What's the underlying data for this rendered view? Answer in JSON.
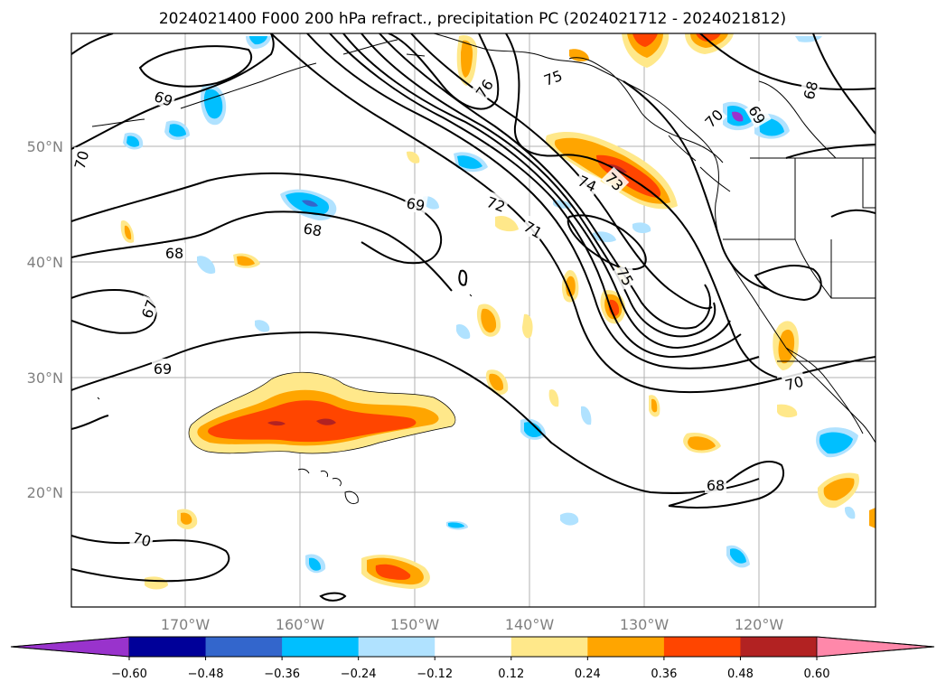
{
  "title": "2024021400 F000 200 hPa refract., precipitation PC (2024021712 - 2024021812)",
  "map": {
    "lon_ticks": [
      "170°W",
      "160°W",
      "150°W",
      "140°W",
      "130°W",
      "120°W"
    ],
    "lat_ticks": [
      "50°N",
      "40°N",
      "30°N",
      "20°N"
    ],
    "gridlines": true
  },
  "contour_labels": [
    "69",
    "70",
    "76",
    "75",
    "70",
    "69",
    "68",
    "68",
    "69",
    "72",
    "74",
    "73",
    "71",
    "68",
    "75",
    "67",
    "69",
    "70",
    "68",
    "70"
  ],
  "colorbar": {
    "labels": [
      "−0.60",
      "−0.48",
      "−0.36",
      "−0.24",
      "−0.12",
      "0.12",
      "0.24",
      "0.36",
      "0.48",
      "0.60"
    ],
    "colors": [
      "#9933cc",
      "#000099",
      "#3366cc",
      "#00bfff",
      "#b0e2ff",
      "#ffffff",
      "#ffe88a",
      "#ffa500",
      "#ff4500",
      "#b22222",
      "#ff88aa"
    ],
    "extend": "both"
  }
}
